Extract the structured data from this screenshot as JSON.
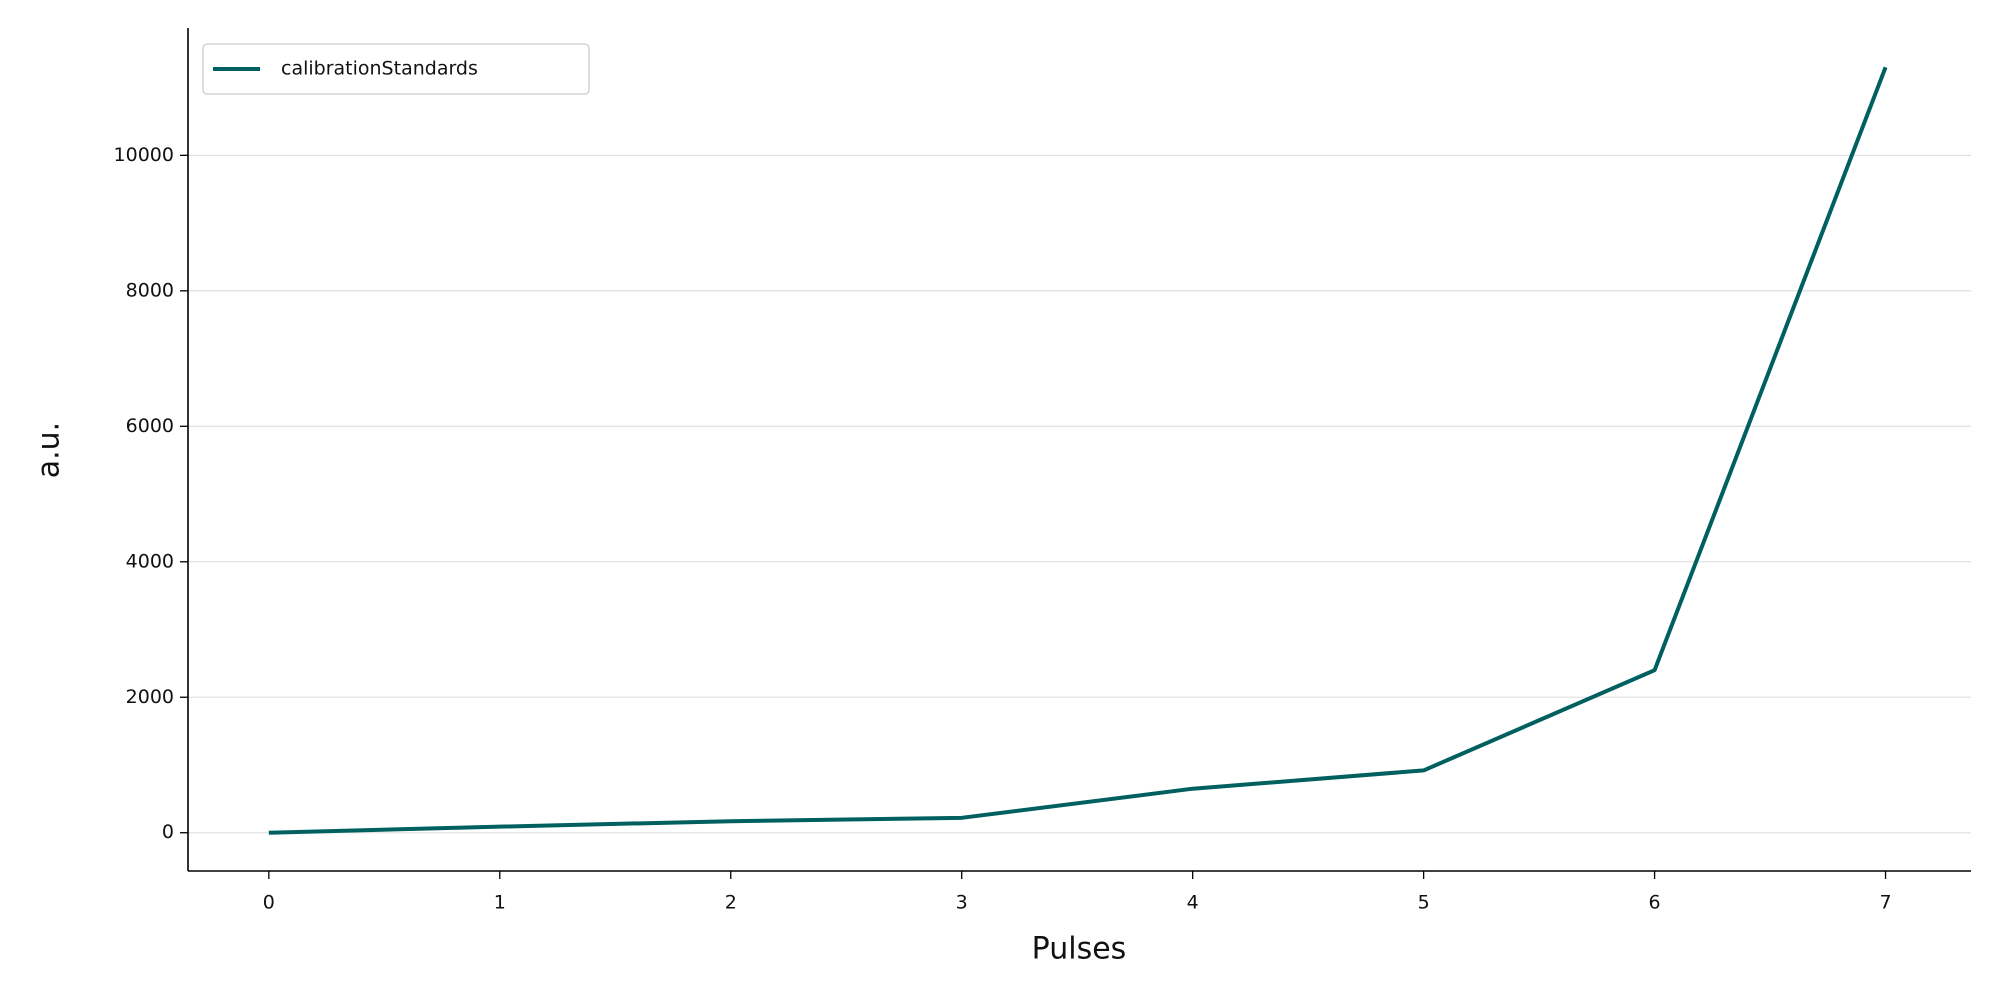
{
  "chart_data": {
    "type": "line",
    "x_label": "Pulses",
    "y_label": "a.u.",
    "x": [
      0,
      1,
      2,
      3,
      4,
      5,
      6,
      7
    ],
    "series": [
      {
        "name": "calibrationStandards",
        "color": "#005f5f",
        "values": [
          0,
          90,
          170,
          220,
          650,
          920,
          2400,
          11300
        ]
      }
    ],
    "xlim": [
      -0.35,
      7.37
    ],
    "xticks": [
      0,
      1,
      2,
      3,
      4,
      5,
      6,
      7
    ],
    "ylim": [
      -565,
      11880
    ],
    "yticks": [
      0,
      2000,
      4000,
      6000,
      8000,
      10000
    ],
    "grid": true,
    "legend": "upper-left"
  }
}
